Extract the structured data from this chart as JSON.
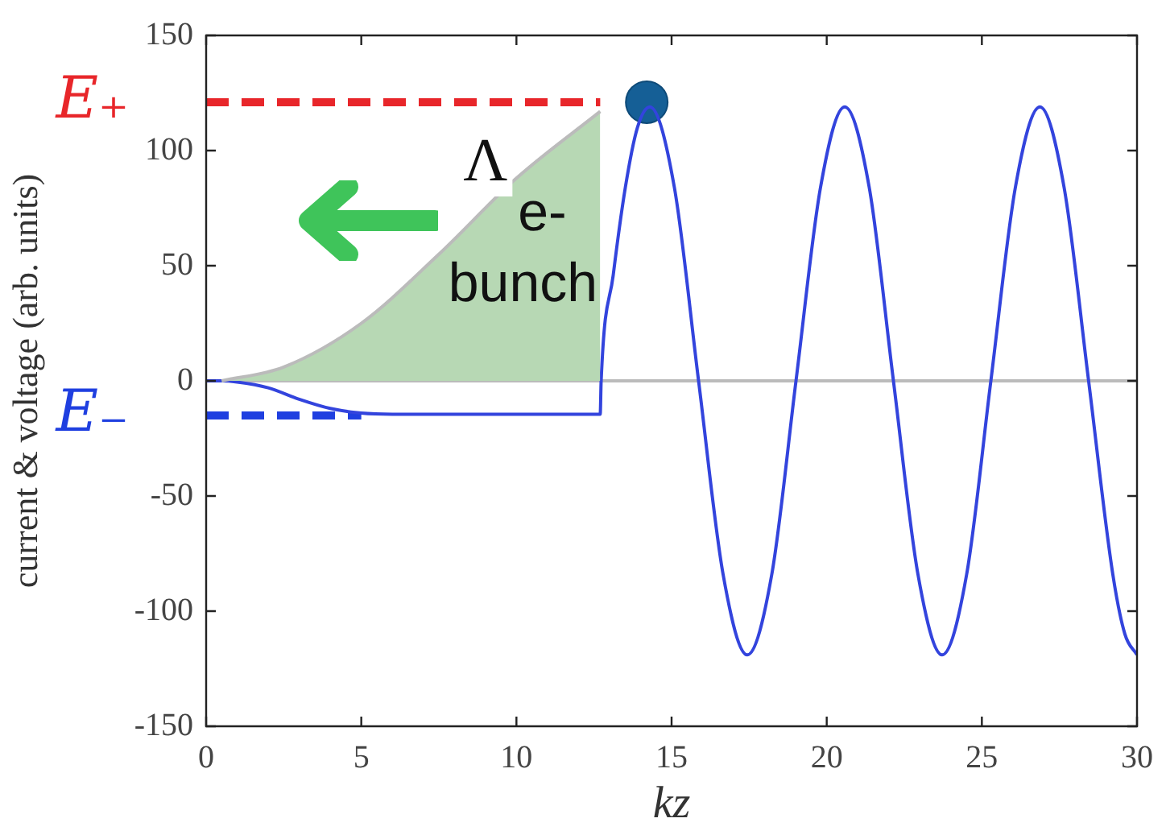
{
  "chart_data": {
    "type": "line",
    "xlabel": "kz",
    "ylabel": "current & voltage (arb. units)",
    "xlim": [
      0,
      30
    ],
    "xticks": [
      0,
      5,
      10,
      15,
      20,
      25,
      30
    ],
    "ylim": [
      -150,
      150
    ],
    "yticks": [
      -150,
      -100,
      -50,
      0,
      50,
      100,
      150
    ],
    "grid": false,
    "legend": false,
    "marker": "none",
    "line_style": "solid",
    "ref_lines": [
      {
        "axis": "y",
        "value": 0,
        "color": "#bbbbbb"
      }
    ],
    "annotations": [
      "Λ"
    ],
    "series": [
      {
        "type": "area",
        "name": "e- bunch",
        "color": "#b7d8b4",
        "x": [
          0.5,
          2.5,
          5,
          7.5,
          10,
          12.7
        ],
        "values": [
          0,
          6,
          25,
          55,
          88,
          117
        ]
      },
      {
        "color": "#3344dd",
        "x": [
          0,
          0.5,
          1,
          2,
          3,
          4,
          5,
          6,
          12.7,
          12.73,
          13.12,
          13.51,
          13.9,
          14.3,
          15.09,
          15.87,
          16.66,
          17.44,
          18.23,
          19.01,
          19.8,
          20.58,
          21.37,
          22.15,
          22.94,
          23.72,
          24.51,
          25.29,
          26.08,
          26.87,
          27.65,
          28.44,
          29.22,
          29.61,
          30
        ],
        "values": [
          0,
          0,
          -0.5,
          -3,
          -8,
          -12,
          -14,
          -14.5,
          -14.5,
          0,
          46,
          84,
          110,
          119,
          84,
          0,
          -84,
          -119,
          -84,
          0,
          84,
          119,
          84,
          0,
          -84,
          -119,
          -84,
          0,
          84,
          119,
          84,
          0,
          -84,
          -110,
          -119
        ]
      },
      {
        "type": "line",
        "name": "E₊",
        "color": "#e8262a",
        "line_style": "dashed",
        "x": [
          0,
          12.7
        ],
        "values": [
          121,
          121
        ]
      },
      {
        "type": "line",
        "name": "E₋",
        "color": "#1f3fe0",
        "line_style": "dashed",
        "x": [
          0,
          5
        ],
        "values": [
          -15,
          -15
        ]
      },
      {
        "type": "scatter",
        "color": "#155f96",
        "marker": "circle",
        "x": [
          14.2
        ],
        "values": [
          121
        ]
      }
    ]
  }
}
